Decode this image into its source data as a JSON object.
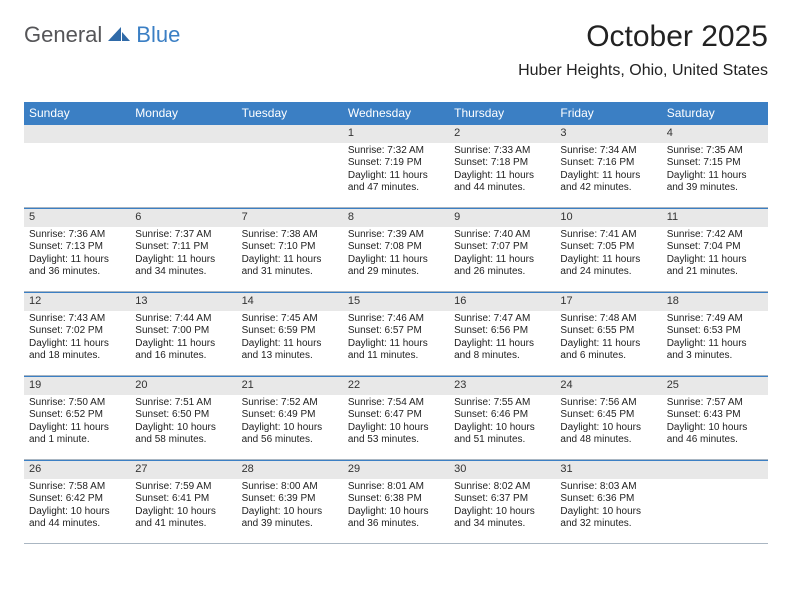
{
  "logo": {
    "part1": "General",
    "part2": "Blue"
  },
  "title": "October 2025",
  "subtitle": "Huber Heights, Ohio, United States",
  "colors": {
    "header_bg": "#3b7fc4",
    "header_text": "#ffffff",
    "band_bg": "#e8e8e8",
    "border_top": "#3b7fc4",
    "border_bottom": "#aab6c2",
    "text": "#222222"
  },
  "day_headers": [
    "Sunday",
    "Monday",
    "Tuesday",
    "Wednesday",
    "Thursday",
    "Friday",
    "Saturday"
  ],
  "weeks": [
    [
      {
        "n": "",
        "sr": "",
        "ss": "",
        "dl": ""
      },
      {
        "n": "",
        "sr": "",
        "ss": "",
        "dl": ""
      },
      {
        "n": "",
        "sr": "",
        "ss": "",
        "dl": ""
      },
      {
        "n": "1",
        "sr": "7:32 AM",
        "ss": "7:19 PM",
        "dl": "11 hours and 47 minutes."
      },
      {
        "n": "2",
        "sr": "7:33 AM",
        "ss": "7:18 PM",
        "dl": "11 hours and 44 minutes."
      },
      {
        "n": "3",
        "sr": "7:34 AM",
        "ss": "7:16 PM",
        "dl": "11 hours and 42 minutes."
      },
      {
        "n": "4",
        "sr": "7:35 AM",
        "ss": "7:15 PM",
        "dl": "11 hours and 39 minutes."
      }
    ],
    [
      {
        "n": "5",
        "sr": "7:36 AM",
        "ss": "7:13 PM",
        "dl": "11 hours and 36 minutes."
      },
      {
        "n": "6",
        "sr": "7:37 AM",
        "ss": "7:11 PM",
        "dl": "11 hours and 34 minutes."
      },
      {
        "n": "7",
        "sr": "7:38 AM",
        "ss": "7:10 PM",
        "dl": "11 hours and 31 minutes."
      },
      {
        "n": "8",
        "sr": "7:39 AM",
        "ss": "7:08 PM",
        "dl": "11 hours and 29 minutes."
      },
      {
        "n": "9",
        "sr": "7:40 AM",
        "ss": "7:07 PM",
        "dl": "11 hours and 26 minutes."
      },
      {
        "n": "10",
        "sr": "7:41 AM",
        "ss": "7:05 PM",
        "dl": "11 hours and 24 minutes."
      },
      {
        "n": "11",
        "sr": "7:42 AM",
        "ss": "7:04 PM",
        "dl": "11 hours and 21 minutes."
      }
    ],
    [
      {
        "n": "12",
        "sr": "7:43 AM",
        "ss": "7:02 PM",
        "dl": "11 hours and 18 minutes."
      },
      {
        "n": "13",
        "sr": "7:44 AM",
        "ss": "7:00 PM",
        "dl": "11 hours and 16 minutes."
      },
      {
        "n": "14",
        "sr": "7:45 AM",
        "ss": "6:59 PM",
        "dl": "11 hours and 13 minutes."
      },
      {
        "n": "15",
        "sr": "7:46 AM",
        "ss": "6:57 PM",
        "dl": "11 hours and 11 minutes."
      },
      {
        "n": "16",
        "sr": "7:47 AM",
        "ss": "6:56 PM",
        "dl": "11 hours and 8 minutes."
      },
      {
        "n": "17",
        "sr": "7:48 AM",
        "ss": "6:55 PM",
        "dl": "11 hours and 6 minutes."
      },
      {
        "n": "18",
        "sr": "7:49 AM",
        "ss": "6:53 PM",
        "dl": "11 hours and 3 minutes."
      }
    ],
    [
      {
        "n": "19",
        "sr": "7:50 AM",
        "ss": "6:52 PM",
        "dl": "11 hours and 1 minute."
      },
      {
        "n": "20",
        "sr": "7:51 AM",
        "ss": "6:50 PM",
        "dl": "10 hours and 58 minutes."
      },
      {
        "n": "21",
        "sr": "7:52 AM",
        "ss": "6:49 PM",
        "dl": "10 hours and 56 minutes."
      },
      {
        "n": "22",
        "sr": "7:54 AM",
        "ss": "6:47 PM",
        "dl": "10 hours and 53 minutes."
      },
      {
        "n": "23",
        "sr": "7:55 AM",
        "ss": "6:46 PM",
        "dl": "10 hours and 51 minutes."
      },
      {
        "n": "24",
        "sr": "7:56 AM",
        "ss": "6:45 PM",
        "dl": "10 hours and 48 minutes."
      },
      {
        "n": "25",
        "sr": "7:57 AM",
        "ss": "6:43 PM",
        "dl": "10 hours and 46 minutes."
      }
    ],
    [
      {
        "n": "26",
        "sr": "7:58 AM",
        "ss": "6:42 PM",
        "dl": "10 hours and 44 minutes."
      },
      {
        "n": "27",
        "sr": "7:59 AM",
        "ss": "6:41 PM",
        "dl": "10 hours and 41 minutes."
      },
      {
        "n": "28",
        "sr": "8:00 AM",
        "ss": "6:39 PM",
        "dl": "10 hours and 39 minutes."
      },
      {
        "n": "29",
        "sr": "8:01 AM",
        "ss": "6:38 PM",
        "dl": "10 hours and 36 minutes."
      },
      {
        "n": "30",
        "sr": "8:02 AM",
        "ss": "6:37 PM",
        "dl": "10 hours and 34 minutes."
      },
      {
        "n": "31",
        "sr": "8:03 AM",
        "ss": "6:36 PM",
        "dl": "10 hours and 32 minutes."
      },
      {
        "n": "",
        "sr": "",
        "ss": "",
        "dl": ""
      }
    ]
  ],
  "labels": {
    "sunrise": "Sunrise:",
    "sunset": "Sunset:",
    "daylight": "Daylight:"
  }
}
